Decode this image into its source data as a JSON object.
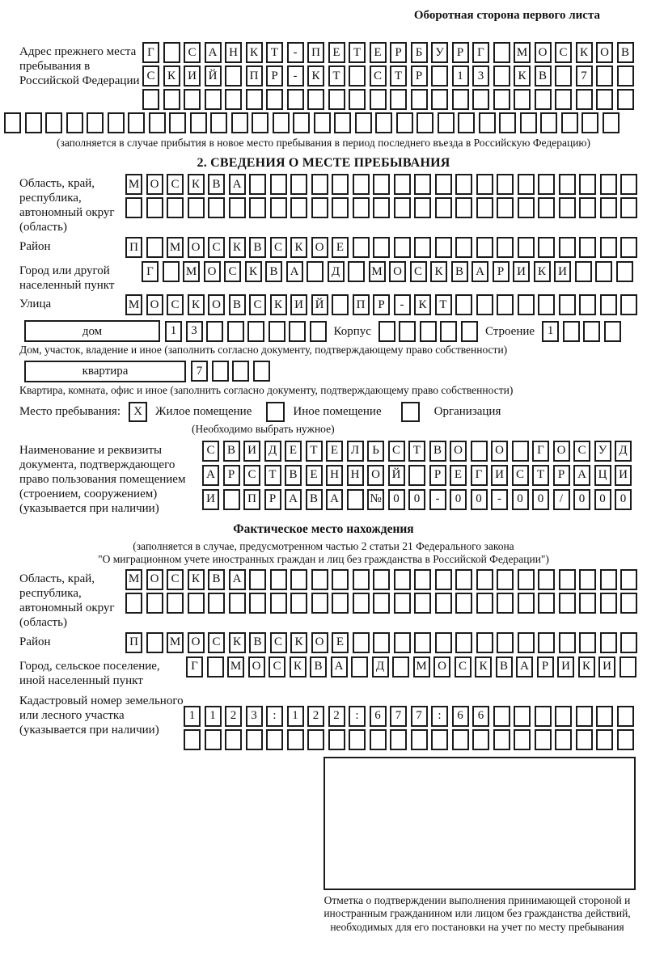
{
  "header": {
    "side_note": "Оборотная сторона первого листа"
  },
  "prev_address": {
    "label": "Адрес прежнего места пребывания в Российской Федерации",
    "rows": [
      {
        "text": "Г САНКТ-ПЕТЕРБУРГ МОСКОВ",
        "cols": 24
      },
      {
        "text": "СКИЙ ПР-КТ СТР 13 КВ 7",
        "cols": 24
      },
      {
        "text": "",
        "cols": 24
      }
    ],
    "full_row": {
      "text": "",
      "cols": 30
    },
    "note": "(заполняется в случае прибытия в новое место пребывания в период последнего въезда в Российскую Федерацию)"
  },
  "place_section": {
    "title": "2. СВЕДЕНИЯ О МЕСТЕ ПРЕБЫВАНИЯ",
    "region": {
      "label": "Область, край, республика, автономный округ (область)",
      "rows": [
        {
          "text": "МОСКВА",
          "cols": 25
        },
        {
          "text": "",
          "cols": 25
        }
      ]
    },
    "district": {
      "label": "Район",
      "row": {
        "text": "П МОСКВСКОЕ",
        "cols": 25
      }
    },
    "city": {
      "label": "Город или другой населенный пункт",
      "row": {
        "text": "Г МОСКВА Д МОСКВАРИКИ",
        "cols": 24
      }
    },
    "street": {
      "label": "Улица",
      "row": {
        "text": "МОСКОВСКИЙ ПР-КТ",
        "cols": 25
      }
    },
    "house": {
      "box_label": "дом",
      "cells": {
        "text": "13",
        "cols": 8
      },
      "korpus_label": "Корпус",
      "korpus_cells": {
        "text": "",
        "cols": 5
      },
      "stroenie_label": "Строение",
      "stroenie_cells": {
        "text": "1",
        "cols": 4
      },
      "caption": "Дом, участок, владение и иное (заполнить согласно документу, подтверждающему право собственности)"
    },
    "apartment": {
      "box_label": "квартира",
      "cells": {
        "text": "7",
        "cols": 4
      },
      "caption": "Квартира, комната, офис и иное (заполнить согласно документу, подтверждающему право собственности)"
    },
    "stay_type": {
      "label": "Место пребывания:",
      "options": [
        {
          "mark": "X",
          "label": "Жилое помещение"
        },
        {
          "mark": "",
          "label": "Иное помещение"
        },
        {
          "mark": "",
          "label": "Организация"
        }
      ],
      "note": "(Необходимо выбрать нужное)"
    },
    "document": {
      "label": "Наименование и реквизиты документа, подтверждающего право пользования помещением (строением, сооружением) (указывается при наличии)",
      "rows": [
        {
          "text": "СВИДЕТЕЛЬСТВО О ГОСУД",
          "cols": 21
        },
        {
          "text": "АРСТВЕННОЙ РЕГИСТРАЦИ",
          "cols": 21
        },
        {
          "text": "И ПРАВА №00-00-00/000",
          "cols": 21
        }
      ]
    }
  },
  "actual_location": {
    "title": "Фактическое место нахождения",
    "note_line1": "(заполняется в случае, предусмотренном частью 2 статьи 21 Федерального закона",
    "note_line2": "\"О миграционном учете иностранных граждан и лиц без гражданства в Российской Федерации\")",
    "region": {
      "label": "Область, край, республика, автономный округ (область)",
      "rows": [
        {
          "text": "МОСКВА",
          "cols": 25
        },
        {
          "text": "",
          "cols": 25
        }
      ]
    },
    "district": {
      "label": "Район",
      "row": {
        "text": "П МОСКВСКОЕ",
        "cols": 25
      }
    },
    "city": {
      "label": "Город, сельское поселение, иной населенный пункт",
      "row": {
        "text": "Г МОСКВА Д МОСКВАРИКИ",
        "cols": 22
      }
    },
    "cadastral": {
      "label": "Кадастровый номер земельного или лесного участка (указывается при наличии)",
      "rows": [
        {
          "text": "1123:122:677:66",
          "cols": 22
        },
        {
          "text": "",
          "cols": 22
        }
      ]
    },
    "stamp_caption": "Отметка о подтверждении выполнения принимающей стороной и иностранным гражданином или лицом без гражданства действий, необходимых для его постановки на учет по месту пребывания"
  }
}
